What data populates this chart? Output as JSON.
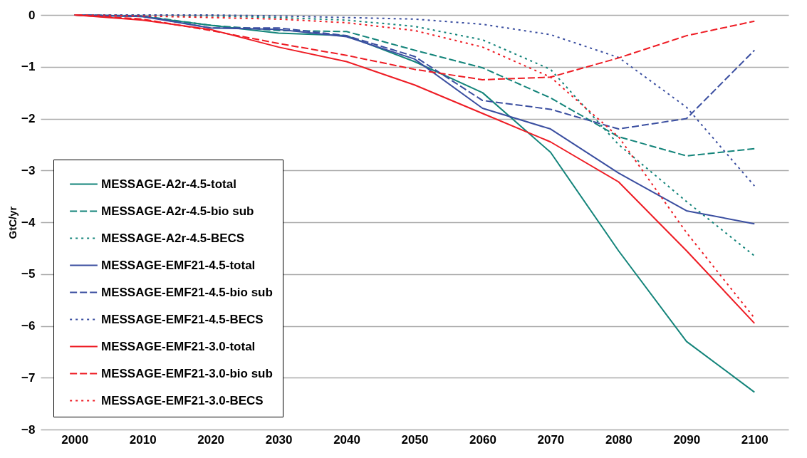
{
  "chart_data": {
    "type": "line",
    "ylabel": "GtC/yr",
    "categories": [
      "2000",
      "2010",
      "2020",
      "2030",
      "2040",
      "2050",
      "2060",
      "2070",
      "2080",
      "2090",
      "2100"
    ],
    "ylim": [
      -8,
      0
    ],
    "yticks": [
      -8,
      -7,
      -6,
      -5,
      -4,
      -3,
      -2,
      -1,
      0
    ],
    "grid": "y",
    "legend": "bottom left",
    "marker": "none",
    "series": [
      {
        "name": "MESSAGE-A2r-4.5-total",
        "color": "#13847a",
        "line_style": "solid",
        "values": [
          0,
          -0.03,
          -0.2,
          -0.35,
          -0.4,
          -0.9,
          -1.5,
          -2.65,
          -4.55,
          -6.3,
          -7.28
        ]
      },
      {
        "name": "MESSAGE-A2r-4.5-bio sub",
        "color": "#13847a",
        "line_style": "dashed",
        "values": [
          0,
          -0.02,
          -0.2,
          -0.3,
          -0.32,
          -0.68,
          -1.02,
          -1.6,
          -2.35,
          -2.72,
          -2.58
        ]
      },
      {
        "name": "MESSAGE-A2r-4.5-BECS",
        "color": "#13847a",
        "line_style": "dotted",
        "values": [
          0,
          0,
          -0.02,
          -0.05,
          -0.1,
          -0.22,
          -0.48,
          -1.05,
          -2.5,
          -3.6,
          -4.65
        ]
      },
      {
        "name": "MESSAGE-EMF21-4.5-total",
        "color": "#3a4ea0",
        "line_style": "solid",
        "values": [
          0,
          -0.03,
          -0.25,
          -0.28,
          -0.42,
          -0.85,
          -1.8,
          -2.2,
          -3.05,
          -3.78,
          -4.03
        ]
      },
      {
        "name": "MESSAGE-EMF21-4.5-bio sub",
        "color": "#3a4ea0",
        "line_style": "dashed",
        "values": [
          0,
          -0.02,
          -0.25,
          -0.25,
          -0.4,
          -0.8,
          -1.65,
          -1.82,
          -2.2,
          -2.0,
          -0.68
        ]
      },
      {
        "name": "MESSAGE-EMF21-4.5-BECS",
        "color": "#3a4ea0",
        "line_style": "dotted",
        "values": [
          0,
          0,
          0,
          -0.02,
          -0.05,
          -0.08,
          -0.18,
          -0.38,
          -0.82,
          -1.78,
          -3.3
        ]
      },
      {
        "name": "MESSAGE-EMF21-3.0-total",
        "color": "#ee1c24",
        "line_style": "solid",
        "values": [
          0,
          -0.1,
          -0.28,
          -0.62,
          -0.9,
          -1.35,
          -1.9,
          -2.45,
          -3.22,
          -4.55,
          -5.95
        ]
      },
      {
        "name": "MESSAGE-EMF21-3.0-bio sub",
        "color": "#ee1c24",
        "line_style": "dashed",
        "values": [
          0,
          -0.08,
          -0.3,
          -0.55,
          -0.78,
          -1.05,
          -1.25,
          -1.2,
          -0.83,
          -0.4,
          -0.12
        ]
      },
      {
        "name": "MESSAGE-EMF21-3.0-BECS",
        "color": "#ee1c24",
        "line_style": "dotted",
        "values": [
          0,
          -0.02,
          -0.05,
          -0.08,
          -0.15,
          -0.3,
          -0.62,
          -1.2,
          -2.35,
          -4.2,
          -5.85
        ]
      }
    ]
  }
}
